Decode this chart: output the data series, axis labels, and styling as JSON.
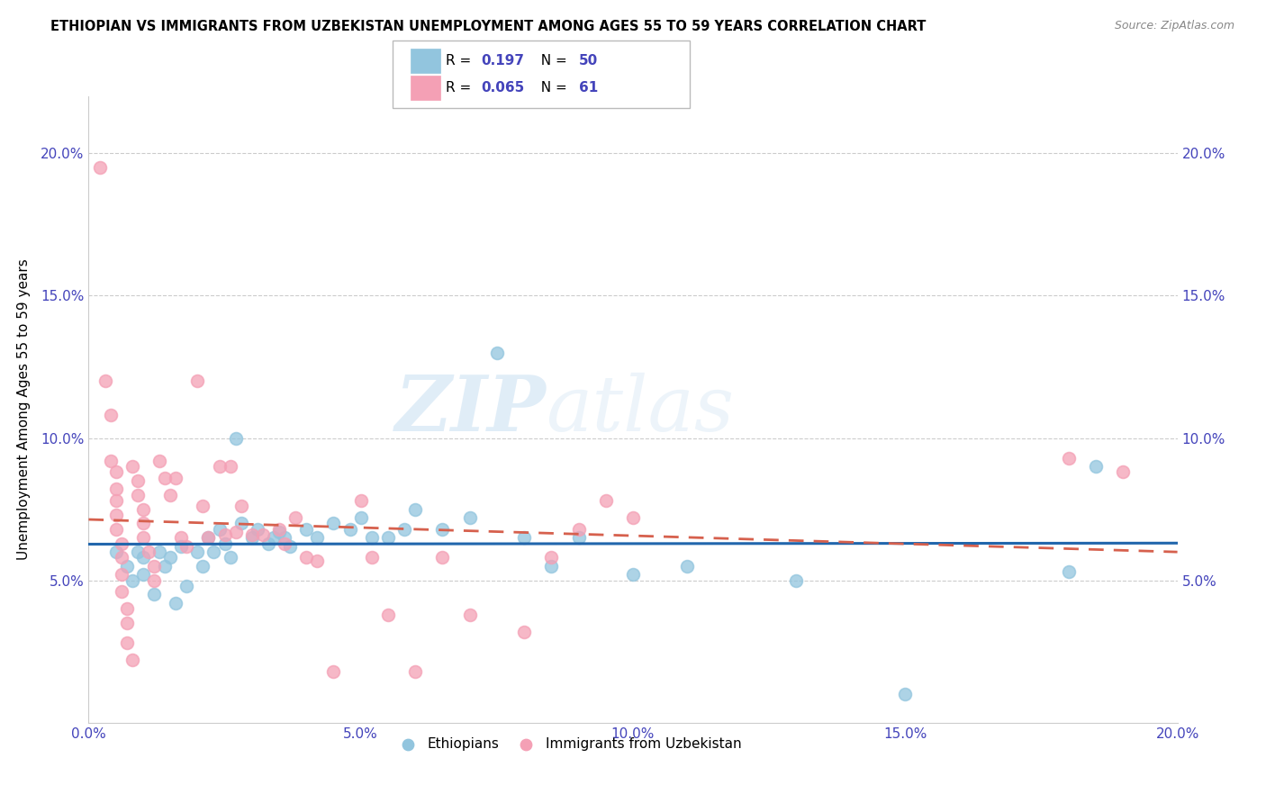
{
  "title": "ETHIOPIAN VS IMMIGRANTS FROM UZBEKISTAN UNEMPLOYMENT AMONG AGES 55 TO 59 YEARS CORRELATION CHART",
  "source": "Source: ZipAtlas.com",
  "ylabel": "Unemployment Among Ages 55 to 59 years",
  "xlim": [
    0.0,
    0.2
  ],
  "ylim": [
    0.0,
    0.22
  ],
  "yticks": [
    0.05,
    0.1,
    0.15,
    0.2
  ],
  "ytick_labels": [
    "5.0%",
    "10.0%",
    "15.0%",
    "20.0%"
  ],
  "xticks": [
    0.0,
    0.05,
    0.1,
    0.15,
    0.2
  ],
  "xtick_labels": [
    "0.0%",
    "5.0%",
    "10.0%",
    "15.0%",
    "20.0%"
  ],
  "blue_color": "#92c5de",
  "pink_color": "#f4a0b5",
  "trend_blue": "#2166ac",
  "trend_pink": "#d6604d",
  "R_blue": "0.197",
  "N_blue": "50",
  "R_pink": "0.065",
  "N_pink": "61",
  "legend1_label": "Ethiopians",
  "legend2_label": "Immigrants from Uzbekistan",
  "watermark_zip": "ZIP",
  "watermark_atlas": "atlas",
  "axis_color": "#4444bb",
  "grid_color": "#cccccc",
  "blue_scatter": [
    [
      0.005,
      0.06
    ],
    [
      0.007,
      0.055
    ],
    [
      0.008,
      0.05
    ],
    [
      0.009,
      0.06
    ],
    [
      0.01,
      0.058
    ],
    [
      0.01,
      0.052
    ],
    [
      0.012,
      0.045
    ],
    [
      0.013,
      0.06
    ],
    [
      0.014,
      0.055
    ],
    [
      0.015,
      0.058
    ],
    [
      0.016,
      0.042
    ],
    [
      0.017,
      0.062
    ],
    [
      0.018,
      0.048
    ],
    [
      0.02,
      0.06
    ],
    [
      0.021,
      0.055
    ],
    [
      0.022,
      0.065
    ],
    [
      0.023,
      0.06
    ],
    [
      0.024,
      0.068
    ],
    [
      0.025,
      0.063
    ],
    [
      0.026,
      0.058
    ],
    [
      0.027,
      0.1
    ],
    [
      0.028,
      0.07
    ],
    [
      0.03,
      0.065
    ],
    [
      0.031,
      0.068
    ],
    [
      0.033,
      0.063
    ],
    [
      0.034,
      0.065
    ],
    [
      0.035,
      0.067
    ],
    [
      0.036,
      0.065
    ],
    [
      0.037,
      0.062
    ],
    [
      0.04,
      0.068
    ],
    [
      0.042,
      0.065
    ],
    [
      0.045,
      0.07
    ],
    [
      0.048,
      0.068
    ],
    [
      0.05,
      0.072
    ],
    [
      0.052,
      0.065
    ],
    [
      0.055,
      0.065
    ],
    [
      0.058,
      0.068
    ],
    [
      0.06,
      0.075
    ],
    [
      0.065,
      0.068
    ],
    [
      0.07,
      0.072
    ],
    [
      0.075,
      0.13
    ],
    [
      0.08,
      0.065
    ],
    [
      0.085,
      0.055
    ],
    [
      0.09,
      0.065
    ],
    [
      0.1,
      0.052
    ],
    [
      0.11,
      0.055
    ],
    [
      0.13,
      0.05
    ],
    [
      0.15,
      0.01
    ],
    [
      0.18,
      0.053
    ],
    [
      0.185,
      0.09
    ]
  ],
  "pink_scatter": [
    [
      0.002,
      0.195
    ],
    [
      0.003,
      0.12
    ],
    [
      0.004,
      0.108
    ],
    [
      0.004,
      0.092
    ],
    [
      0.005,
      0.088
    ],
    [
      0.005,
      0.082
    ],
    [
      0.005,
      0.078
    ],
    [
      0.005,
      0.073
    ],
    [
      0.005,
      0.068
    ],
    [
      0.006,
      0.063
    ],
    [
      0.006,
      0.058
    ],
    [
      0.006,
      0.052
    ],
    [
      0.006,
      0.046
    ],
    [
      0.007,
      0.04
    ],
    [
      0.007,
      0.035
    ],
    [
      0.007,
      0.028
    ],
    [
      0.008,
      0.022
    ],
    [
      0.008,
      0.09
    ],
    [
      0.009,
      0.085
    ],
    [
      0.009,
      0.08
    ],
    [
      0.01,
      0.075
    ],
    [
      0.01,
      0.07
    ],
    [
      0.01,
      0.065
    ],
    [
      0.011,
      0.06
    ],
    [
      0.012,
      0.055
    ],
    [
      0.012,
      0.05
    ],
    [
      0.013,
      0.092
    ],
    [
      0.014,
      0.086
    ],
    [
      0.015,
      0.08
    ],
    [
      0.016,
      0.086
    ],
    [
      0.017,
      0.065
    ],
    [
      0.018,
      0.062
    ],
    [
      0.02,
      0.12
    ],
    [
      0.021,
      0.076
    ],
    [
      0.022,
      0.065
    ],
    [
      0.024,
      0.09
    ],
    [
      0.025,
      0.066
    ],
    [
      0.026,
      0.09
    ],
    [
      0.027,
      0.067
    ],
    [
      0.028,
      0.076
    ],
    [
      0.03,
      0.066
    ],
    [
      0.032,
      0.066
    ],
    [
      0.035,
      0.068
    ],
    [
      0.036,
      0.063
    ],
    [
      0.038,
      0.072
    ],
    [
      0.04,
      0.058
    ],
    [
      0.042,
      0.057
    ],
    [
      0.045,
      0.018
    ],
    [
      0.05,
      0.078
    ],
    [
      0.052,
      0.058
    ],
    [
      0.055,
      0.038
    ],
    [
      0.06,
      0.018
    ],
    [
      0.065,
      0.058
    ],
    [
      0.07,
      0.038
    ],
    [
      0.08,
      0.032
    ],
    [
      0.085,
      0.058
    ],
    [
      0.09,
      0.068
    ],
    [
      0.095,
      0.078
    ],
    [
      0.1,
      0.072
    ],
    [
      0.18,
      0.093
    ],
    [
      0.19,
      0.088
    ]
  ]
}
